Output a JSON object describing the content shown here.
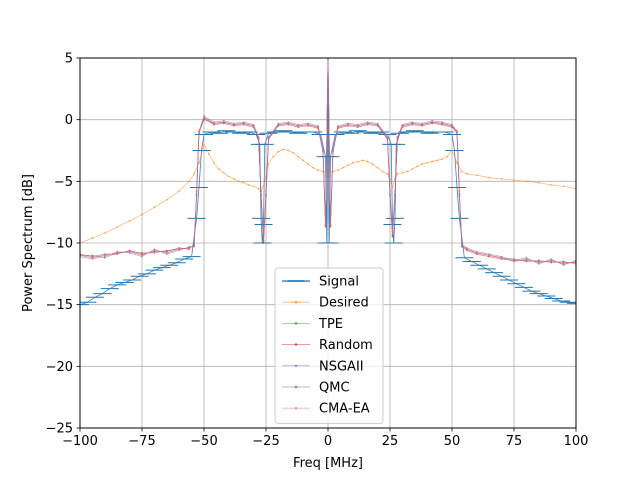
{
  "chart_data": {
    "type": "line",
    "xlabel": "Freq [MHz]",
    "ylabel": "Power Spectrum [dB]",
    "xlim": [
      -100,
      100
    ],
    "ylim": [
      -25,
      5
    ],
    "xticks": [
      -100,
      -75,
      -50,
      -25,
      0,
      25,
      50,
      75,
      100
    ],
    "yticks": [
      -25,
      -20,
      -15,
      -10,
      -5,
      0,
      5
    ],
    "grid": true,
    "legend_position": "lower-center",
    "series": [
      {
        "name": "Signal",
        "color": "#1f77b4",
        "marker": "hline",
        "x": [
          -100,
          -97,
          -94,
          -91,
          -88,
          -85,
          -82,
          -79,
          -76,
          -73,
          -70,
          -67,
          -64,
          -61,
          -58,
          -55,
          -53,
          -52,
          -51,
          -50,
          -47,
          -44,
          -41,
          -38,
          -35,
          -32,
          -29,
          -27.5,
          -27,
          -26.5,
          -26,
          -25.5,
          -24,
          -21,
          -18,
          -15,
          -12,
          -9,
          -6,
          -3,
          -1,
          -0.5,
          0,
          0.5,
          1,
          3,
          6,
          9,
          12,
          15,
          18,
          21,
          24,
          25.5,
          26,
          26.5,
          27,
          27.5,
          29,
          32,
          35,
          38,
          41,
          44,
          47,
          50,
          51,
          52,
          53,
          55,
          58,
          61,
          64,
          67,
          70,
          73,
          76,
          79,
          82,
          85,
          88,
          91,
          94,
          97,
          100
        ],
        "y": [
          -15.0,
          -14.8,
          -14.4,
          -14.1,
          -13.7,
          -13.4,
          -13.2,
          -13.0,
          -12.7,
          -12.5,
          -12.2,
          -12.0,
          -11.8,
          -11.6,
          -11.3,
          -11.1,
          -8.0,
          -5.5,
          -2.5,
          -1.2,
          -1.0,
          -1.1,
          -0.9,
          -1.0,
          -1.1,
          -1.0,
          -1.2,
          -2.0,
          -8.0,
          -10.0,
          -8.5,
          -2.0,
          -1.1,
          -1.0,
          -0.9,
          -1.0,
          -1.1,
          -1.0,
          -1.0,
          -1.2,
          -3.0,
          -10.0,
          5.0,
          -10.0,
          -3.0,
          -1.2,
          -1.0,
          -1.1,
          -0.9,
          -1.0,
          -1.1,
          -1.0,
          -1.2,
          -2.0,
          -8.5,
          -10.0,
          -8.0,
          -2.0,
          -1.1,
          -1.0,
          -0.9,
          -1.0,
          -1.1,
          -1.0,
          -1.0,
          -1.2,
          -2.5,
          -5.5,
          -8.0,
          -11.2,
          -11.5,
          -11.8,
          -12.1,
          -12.4,
          -12.7,
          -13.0,
          -13.3,
          -13.6,
          -13.9,
          -14.1,
          -14.3,
          -14.5,
          -14.7,
          -14.8,
          -14.9
        ]
      },
      {
        "name": "Desired",
        "color": "#ff7f0e",
        "marker": "dot",
        "x": [
          -100,
          -95,
          -90,
          -85,
          -80,
          -75,
          -70,
          -65,
          -60,
          -56,
          -54,
          -52,
          -50,
          -48,
          -46,
          -44,
          -42,
          -40,
          -38,
          -36,
          -34,
          -32,
          -30,
          -28,
          -27,
          -26,
          -25,
          -24,
          -22,
          -20,
          -18,
          -16,
          -14,
          -12,
          -10,
          -8,
          -6,
          -4,
          -2,
          0,
          2,
          4,
          6,
          8,
          10,
          12,
          14,
          16,
          18,
          20,
          22,
          24,
          25,
          26,
          27,
          28,
          30,
          32,
          34,
          36,
          38,
          40,
          42,
          44,
          46,
          48,
          50,
          52,
          54,
          56,
          60,
          65,
          70,
          75,
          80,
          85,
          90,
          95,
          100
        ],
        "y": [
          -10.0,
          -9.6,
          -9.2,
          -8.7,
          -8.2,
          -7.7,
          -7.1,
          -6.5,
          -5.8,
          -5.0,
          -4.4,
          -3.5,
          -2.0,
          -2.8,
          -3.5,
          -4.0,
          -4.3,
          -4.6,
          -4.8,
          -5.0,
          -5.1,
          -5.3,
          -5.4,
          -5.6,
          -5.8,
          -5.4,
          -4.6,
          -3.6,
          -3.0,
          -2.6,
          -2.4,
          -2.5,
          -2.7,
          -3.0,
          -3.3,
          -3.6,
          -3.9,
          -4.1,
          -4.2,
          -4.3,
          -4.2,
          -4.1,
          -3.9,
          -3.7,
          -3.5,
          -3.4,
          -3.3,
          -3.4,
          -3.6,
          -3.9,
          -4.2,
          -4.4,
          -4.8,
          -5.5,
          -4.8,
          -4.4,
          -4.3,
          -4.2,
          -4.0,
          -3.8,
          -3.6,
          -3.5,
          -3.4,
          -3.3,
          -3.2,
          -3.0,
          -2.5,
          -3.5,
          -4.2,
          -4.4,
          -4.5,
          -4.7,
          -4.8,
          -4.9,
          -5.0,
          -5.1,
          -5.3,
          -5.4,
          -5.6
        ]
      },
      {
        "name": "TPE",
        "color": "#2ca02c",
        "marker": "dot",
        "x": [
          -100,
          -95,
          -90,
          -85,
          -80,
          -75,
          -70,
          -65,
          -60,
          -56,
          -54,
          -53,
          -52,
          -50,
          -46,
          -42,
          -38,
          -34,
          -30,
          -28,
          -27,
          -26,
          -25,
          -24,
          -20,
          -16,
          -12,
          -8,
          -4,
          -2,
          -1,
          0,
          1,
          2,
          4,
          8,
          12,
          16,
          20,
          24,
          25,
          26,
          27,
          28,
          30,
          34,
          38,
          42,
          46,
          50,
          52,
          53,
          54,
          56,
          60,
          65,
          70,
          75,
          80,
          85,
          90,
          95,
          100
        ],
        "y": [
          -11.0,
          -11.2,
          -11.0,
          -10.8,
          -10.7,
          -11.0,
          -10.6,
          -10.8,
          -10.5,
          -10.4,
          -10.2,
          -6.0,
          -1.0,
          0.2,
          -0.3,
          -0.2,
          -0.4,
          -0.3,
          -0.5,
          -1.5,
          -6.0,
          -9.8,
          -6.0,
          -1.5,
          -0.4,
          -0.3,
          -0.5,
          -0.4,
          -0.6,
          -2.5,
          -8.5,
          5.0,
          -8.5,
          -2.5,
          -0.6,
          -0.4,
          -0.5,
          -0.3,
          -0.4,
          -1.5,
          -6.0,
          -9.3,
          -6.0,
          -1.5,
          -0.5,
          -0.3,
          -0.4,
          -0.2,
          -0.3,
          -0.5,
          -1.0,
          -6.0,
          -10.2,
          -10.5,
          -10.8,
          -11.0,
          -11.2,
          -11.5,
          -11.3,
          -11.6,
          -11.4,
          -11.7,
          -11.5
        ]
      },
      {
        "name": "Random",
        "color": "#d62728",
        "marker": "dot",
        "x": [
          -100,
          -95,
          -90,
          -85,
          -80,
          -75,
          -70,
          -65,
          -60,
          -56,
          -54,
          -53,
          -52,
          -50,
          -46,
          -42,
          -38,
          -34,
          -30,
          -28,
          -27,
          -26,
          -25,
          -24,
          -20,
          -16,
          -12,
          -8,
          -4,
          -2,
          -1,
          0,
          1,
          2,
          4,
          8,
          12,
          16,
          20,
          24,
          25,
          26,
          27,
          28,
          30,
          34,
          38,
          42,
          46,
          50,
          52,
          53,
          54,
          56,
          60,
          65,
          70,
          75,
          80,
          85,
          90,
          95,
          100
        ],
        "y": [
          -10.9,
          -11.1,
          -10.9,
          -10.9,
          -10.6,
          -10.9,
          -10.7,
          -10.7,
          -10.4,
          -10.5,
          -10.1,
          -6.2,
          -1.1,
          0.1,
          -0.4,
          -0.3,
          -0.5,
          -0.4,
          -0.6,
          -1.6,
          -6.2,
          -10.0,
          -6.2,
          -1.6,
          -0.5,
          -0.4,
          -0.6,
          -0.5,
          -0.7,
          -2.6,
          -8.7,
          4.9,
          -8.7,
          -2.6,
          -0.7,
          -0.5,
          -0.6,
          -0.4,
          -0.5,
          -1.6,
          -6.2,
          -9.5,
          -6.2,
          -1.6,
          -0.6,
          -0.4,
          -0.5,
          -0.3,
          -0.4,
          -0.6,
          -1.1,
          -6.2,
          -10.3,
          -10.6,
          -10.9,
          -11.1,
          -11.3,
          -11.4,
          -11.4,
          -11.5,
          -11.5,
          -11.6,
          -11.6
        ]
      },
      {
        "name": "NSGAII",
        "color": "#9467bd",
        "marker": "dot",
        "x": [
          -100,
          -95,
          -90,
          -85,
          -80,
          -75,
          -70,
          -65,
          -60,
          -56,
          -54,
          -53,
          -52,
          -50,
          -46,
          -42,
          -38,
          -34,
          -30,
          -28,
          -27,
          -26,
          -25,
          -24,
          -20,
          -16,
          -12,
          -8,
          -4,
          -2,
          -1,
          0,
          1,
          2,
          4,
          8,
          12,
          16,
          20,
          24,
          25,
          26,
          27,
          28,
          30,
          34,
          38,
          42,
          46,
          50,
          52,
          53,
          54,
          56,
          60,
          65,
          70,
          75,
          80,
          85,
          90,
          95,
          100
        ],
        "y": [
          -11.1,
          -11.3,
          -11.1,
          -10.7,
          -10.8,
          -11.1,
          -10.5,
          -10.9,
          -10.6,
          -10.3,
          -10.3,
          -5.8,
          -0.9,
          0.3,
          -0.2,
          -0.1,
          -0.3,
          -0.2,
          -0.4,
          -1.4,
          -5.8,
          -9.6,
          -5.8,
          -1.4,
          -0.3,
          -0.2,
          -0.4,
          -0.3,
          -0.5,
          -2.4,
          -8.3,
          5.0,
          -8.3,
          -2.4,
          -0.5,
          -0.3,
          -0.4,
          -0.2,
          -0.3,
          -1.4,
          -5.8,
          -9.1,
          -5.8,
          -1.4,
          -0.4,
          -0.2,
          -0.3,
          -0.1,
          -0.2,
          -0.4,
          -0.9,
          -5.8,
          -10.1,
          -10.4,
          -10.7,
          -10.9,
          -11.1,
          -11.4,
          -11.2,
          -11.7,
          -11.3,
          -11.8,
          -11.4
        ]
      },
      {
        "name": "QMC",
        "color": "#8c564b",
        "marker": "dot",
        "x": [
          -100,
          -95,
          -90,
          -85,
          -80,
          -75,
          -70,
          -65,
          -60,
          -56,
          -54,
          -53,
          -52,
          -50,
          -46,
          -42,
          -38,
          -34,
          -30,
          -28,
          -27,
          -26,
          -25,
          -24,
          -20,
          -16,
          -12,
          -8,
          -4,
          -2,
          -1,
          0,
          1,
          2,
          4,
          8,
          12,
          16,
          20,
          24,
          25,
          26,
          27,
          28,
          30,
          34,
          38,
          42,
          46,
          50,
          52,
          53,
          54,
          56,
          60,
          65,
          70,
          75,
          80,
          85,
          90,
          95,
          100
        ],
        "y": [
          -11.0,
          -11.0,
          -11.2,
          -10.8,
          -10.7,
          -10.8,
          -10.8,
          -10.6,
          -10.5,
          -10.4,
          -10.2,
          -6.1,
          -1.0,
          0.0,
          -0.3,
          -0.2,
          -0.4,
          -0.3,
          -0.5,
          -1.5,
          -6.1,
          -9.9,
          -6.1,
          -1.5,
          -0.4,
          -0.3,
          -0.5,
          -0.4,
          -0.6,
          -2.5,
          -8.6,
          5.0,
          -8.6,
          -2.5,
          -0.6,
          -0.4,
          -0.5,
          -0.3,
          -0.4,
          -1.5,
          -6.1,
          -9.4,
          -6.1,
          -1.5,
          -0.5,
          -0.3,
          -0.4,
          -0.2,
          -0.3,
          -0.5,
          -1.0,
          -6.1,
          -10.2,
          -10.5,
          -10.8,
          -11.0,
          -11.2,
          -11.3,
          -11.5,
          -11.4,
          -11.6,
          -11.5,
          -11.7
        ]
      },
      {
        "name": "CMA-EA",
        "color": "#e377c2",
        "marker": "dot",
        "x": [
          -100,
          -95,
          -90,
          -85,
          -80,
          -75,
          -70,
          -65,
          -60,
          -56,
          -54,
          -53,
          -52,
          -50,
          -46,
          -42,
          -38,
          -34,
          -30,
          -28,
          -27,
          -26,
          -25,
          -24,
          -20,
          -16,
          -12,
          -8,
          -4,
          -2,
          -1,
          0,
          1,
          2,
          4,
          8,
          12,
          16,
          20,
          24,
          25,
          26,
          27,
          28,
          30,
          34,
          38,
          42,
          46,
          50,
          52,
          53,
          54,
          56,
          60,
          65,
          70,
          75,
          80,
          85,
          90,
          95,
          100
        ],
        "y": [
          -11.0,
          -11.2,
          -11.0,
          -10.8,
          -10.7,
          -11.0,
          -10.6,
          -10.8,
          -10.5,
          -10.4,
          -10.2,
          -6.0,
          -1.0,
          0.2,
          -0.3,
          -0.2,
          -0.4,
          -0.3,
          -0.5,
          -1.5,
          -6.0,
          -9.8,
          -6.0,
          -1.5,
          -0.4,
          -0.3,
          -0.5,
          -0.4,
          -0.6,
          -2.5,
          -8.5,
          5.0,
          -8.5,
          -2.5,
          -0.6,
          -0.4,
          -0.5,
          -0.3,
          -0.4,
          -1.5,
          -6.0,
          -9.3,
          -6.0,
          -1.5,
          -0.5,
          -0.3,
          -0.4,
          -0.2,
          -0.3,
          -0.5,
          -1.0,
          -6.0,
          -10.2,
          -10.5,
          -10.8,
          -11.0,
          -11.2,
          -11.5,
          -11.3,
          -11.6,
          -11.4,
          -11.7,
          -11.5
        ]
      }
    ]
  }
}
